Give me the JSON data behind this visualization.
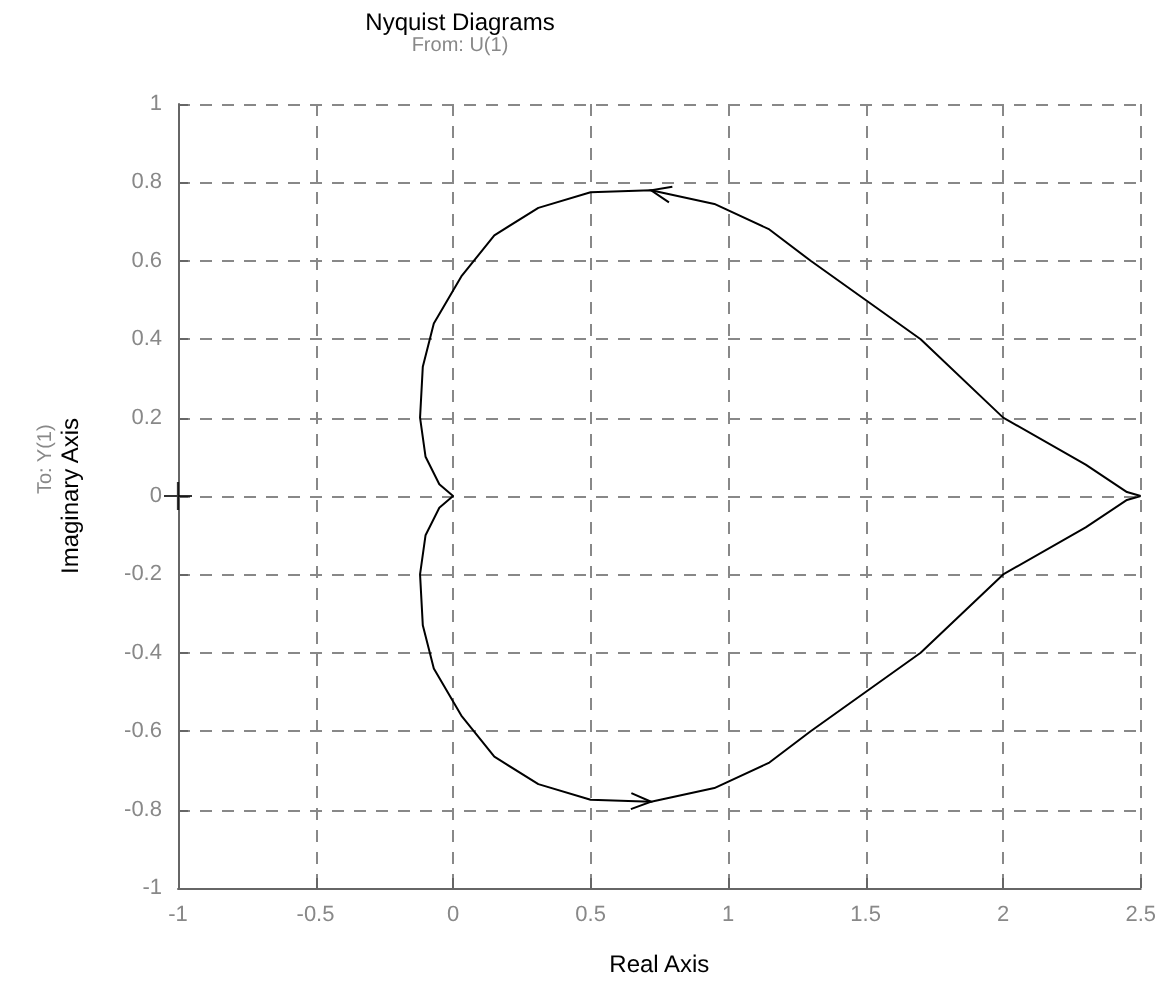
{
  "chart_data": {
    "type": "scatter",
    "title": "Nyquist Diagrams",
    "subtitle": "From: U(1)",
    "xlabel": "Real Axis",
    "ylabel": "Imaginary Axis",
    "annotations": [
      "To: Y(1)"
    ],
    "xlim": [
      -1,
      2.5
    ],
    "xticks": [
      -1,
      -0.5,
      0,
      0.5,
      1,
      1.5,
      2,
      2.5
    ],
    "ylim": [
      -1,
      1
    ],
    "yticks": [
      -1,
      -0.8,
      -0.6,
      -0.4,
      -0.2,
      0,
      0.2,
      0.4,
      0.6,
      0.8,
      1
    ],
    "grid": true,
    "series": [
      {
        "color": "#000000",
        "marker": "cross",
        "x": [
          -1
        ],
        "values": [
          0
        ]
      }
    ]
  }
}
